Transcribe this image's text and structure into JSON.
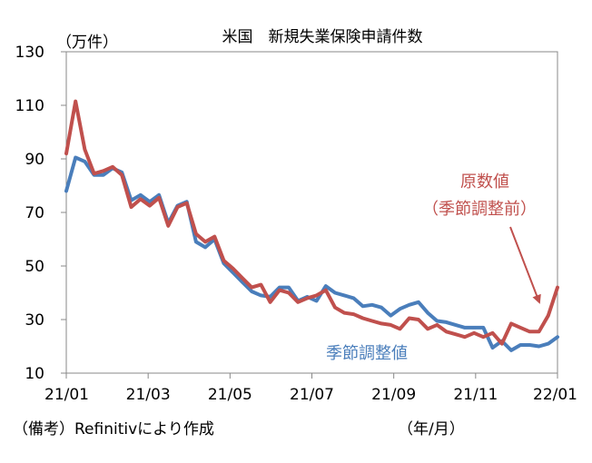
{
  "chart_data": {
    "type": "line",
    "title": "米国　新規失業保険申請件数",
    "y_unit_label": "（万件）",
    "ylim": [
      10,
      130
    ],
    "y_ticks": [
      10,
      30,
      50,
      70,
      90,
      110,
      130
    ],
    "x_tick_labels": [
      "21/01",
      "21/03",
      "21/05",
      "21/07",
      "21/09",
      "21/11",
      "22/01"
    ],
    "x_axis_unit": "（年/月）",
    "grid": false,
    "series": [
      {
        "name": "季節調整値",
        "color": "#4a7ebb",
        "values": [
          78,
          90.5,
          89,
          84,
          84,
          86.5,
          85,
          74.5,
          76.5,
          74,
          76.5,
          66,
          72.5,
          74,
          59,
          57,
          60,
          51,
          47.5,
          44,
          40.5,
          39,
          38.5,
          42,
          42,
          37,
          38.5,
          37,
          42.5,
          40,
          39,
          38,
          35,
          35.5,
          34.5,
          31.5,
          34,
          35.5,
          36.5,
          32.5,
          29.5,
          29,
          28,
          27,
          27,
          27,
          19.5,
          22,
          18.5,
          20.5,
          20.5,
          20,
          21,
          23.5
        ]
      },
      {
        "name": "原数値（季節調整前）",
        "color": "#c0504d",
        "values": [
          92,
          111.5,
          93.5,
          84.5,
          85.5,
          87,
          84,
          72,
          75,
          72.5,
          75.5,
          65,
          72,
          73.5,
          62,
          59,
          61,
          52,
          49,
          45.5,
          42,
          43,
          36.5,
          41,
          40,
          36.5,
          38,
          39,
          41,
          34.5,
          32.5,
          32,
          30.5,
          29.5,
          28.5,
          28,
          26.5,
          30.5,
          30,
          26.5,
          28,
          25.5,
          24.5,
          23.5,
          25,
          23.5,
          25,
          21,
          28.5,
          27,
          25.5,
          25.5,
          31.5,
          42
        ]
      }
    ],
    "annotations": [
      {
        "text_lines": [
          "原数値",
          "（季節調整前）"
        ],
        "color": "#c0504d",
        "arrow": true
      },
      {
        "text_lines": [
          "季節調整値"
        ],
        "color": "#4a7ebb",
        "arrow": false
      }
    ]
  },
  "source_note": "（備考）Refinitivにより作成"
}
